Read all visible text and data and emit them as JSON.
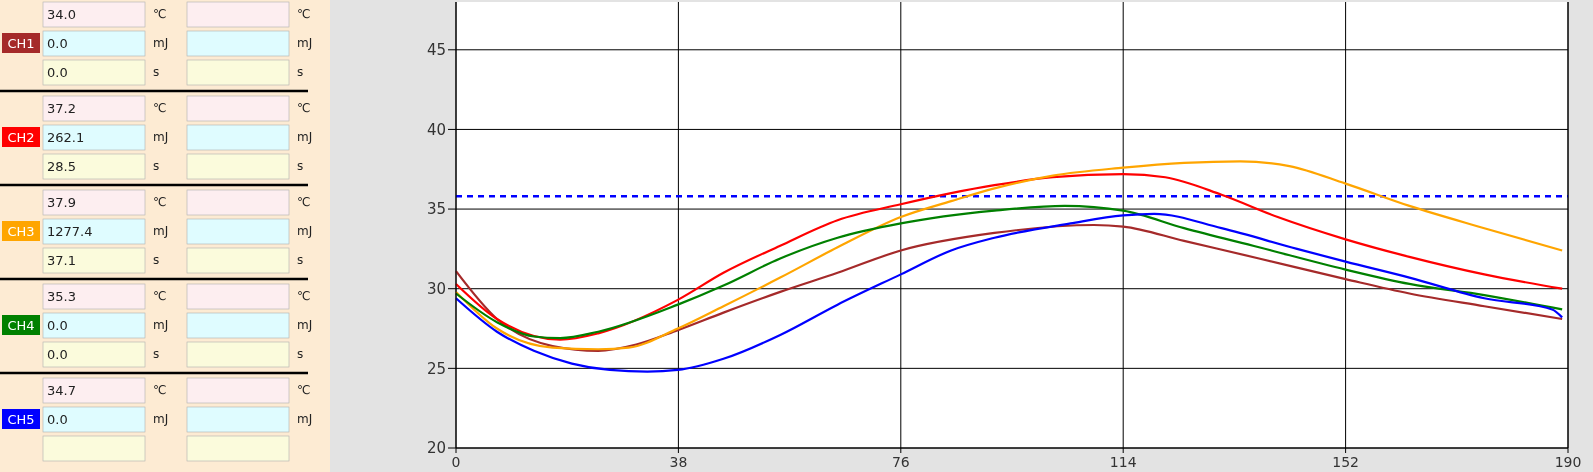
{
  "chart_data": [
    {
      "type": "other",
      "annotations": [
        "34.0",
        "℃",
        "℃",
        "CH1",
        "0.0",
        "mJ",
        "mJ",
        "0.0",
        "s",
        "s",
        "37.2",
        "℃",
        "℃",
        "CH2",
        "262.1",
        "mJ",
        "mJ",
        "28.5",
        "s",
        "s",
        "37.9",
        "℃",
        "℃",
        "CH3",
        "1277.4",
        "mJ",
        "mJ",
        "37.1",
        "s",
        "s",
        "35.3",
        "℃",
        "℃",
        "CH4",
        "0.0",
        "mJ",
        "mJ",
        "0.0",
        "s",
        "s",
        "34.7",
        "℃",
        "℃",
        "CH5",
        "0.0",
        "mJ",
        "mJ"
      ],
      "colors": [
        "#a52a2a",
        "#ff0000",
        "#ffa500",
        "#008000",
        "#0000ff"
      ]
    },
    {
      "type": "line",
      "xlim": [
        0,
        190
      ],
      "xticks": [
        0,
        38,
        76,
        114,
        152,
        190
      ],
      "ylim": [
        20,
        48
      ],
      "yticks": [
        20,
        25,
        30,
        35,
        40,
        45
      ],
      "grid": true,
      "marker": "none",
      "line_style": "solid",
      "ref_lines": [
        {
          "axis": "y",
          "value": 35.8,
          "color": "#0000ff",
          "line_style": "dashed"
        }
      ],
      "series": [
        {
          "color": "#a52a2a",
          "x": [
            0,
            7,
            16.5,
            24.3,
            30.8,
            37.9,
            45.7,
            55.4,
            65.2,
            76,
            92,
            109,
            114,
            124.4,
            137.2,
            152,
            162.9,
            175.7,
            189
          ],
          "values": [
            31.1,
            28.1,
            26.4,
            26.1,
            26.5,
            27.4,
            28.5,
            29.8,
            31.0,
            32.4,
            33.5,
            34.0,
            33.9,
            33.0,
            31.9,
            30.6,
            29.7,
            28.9,
            28.1
          ]
        },
        {
          "color": "#ff0000",
          "x": [
            0,
            7,
            17.8,
            24.3,
            37.9,
            45.7,
            55.4,
            65.2,
            76,
            84.6,
            92,
            102,
            114,
            121.2,
            130.8,
            140.4,
            152,
            162.9,
            175.7,
            189
          ],
          "values": [
            30.3,
            28.1,
            26.8,
            27.2,
            29.3,
            31.0,
            32.7,
            34.3,
            35.3,
            36.0,
            36.5,
            37.0,
            37.2,
            37.0,
            35.9,
            34.5,
            33.1,
            32.0,
            30.9,
            30.0
          ]
        },
        {
          "color": "#ffa500",
          "x": [
            0,
            7,
            16.5,
            24.3,
            29.5,
            37.9,
            45.7,
            55.4,
            65.2,
            76,
            84.6,
            92,
            102,
            114,
            124.4,
            134,
            142.4,
            152,
            162.9,
            175.7,
            189
          ],
          "values": [
            29.8,
            27.5,
            26.3,
            26.2,
            26.3,
            27.5,
            28.9,
            30.7,
            32.6,
            34.5,
            35.5,
            36.3,
            37.1,
            37.6,
            37.9,
            38.0,
            37.7,
            36.6,
            35.2,
            33.8,
            32.4
          ]
        },
        {
          "color": "#008000",
          "x": [
            0,
            7,
            13.3,
            17.8,
            24.3,
            37.9,
            45.7,
            55.4,
            65.2,
            76,
            92,
            104,
            114,
            124.4,
            137.2,
            152,
            162.9,
            175.7,
            189
          ],
          "values": [
            29.7,
            27.9,
            27.0,
            26.9,
            27.3,
            29.0,
            30.2,
            31.9,
            33.2,
            34.1,
            34.9,
            35.2,
            34.9,
            33.8,
            32.6,
            31.2,
            30.3,
            29.6,
            28.7
          ]
        },
        {
          "color": "#0000ff",
          "x": [
            0,
            7,
            13.3,
            19.8,
            26.3,
            32.7,
            37.9,
            45.7,
            55.4,
            65.2,
            76,
            84.6,
            92,
            105,
            114,
            119.3,
            130.8,
            143.7,
            152,
            162.9,
            175.7,
            187.3,
            189
          ],
          "values": [
            29.4,
            27.3,
            26.1,
            25.3,
            24.9,
            24.8,
            24.9,
            25.6,
            27.1,
            29.0,
            30.9,
            32.4,
            33.2,
            34.1,
            34.6,
            34.7,
            33.8,
            32.5,
            31.7,
            30.7,
            29.4,
            28.7,
            28.2
          ]
        }
      ]
    }
  ]
}
